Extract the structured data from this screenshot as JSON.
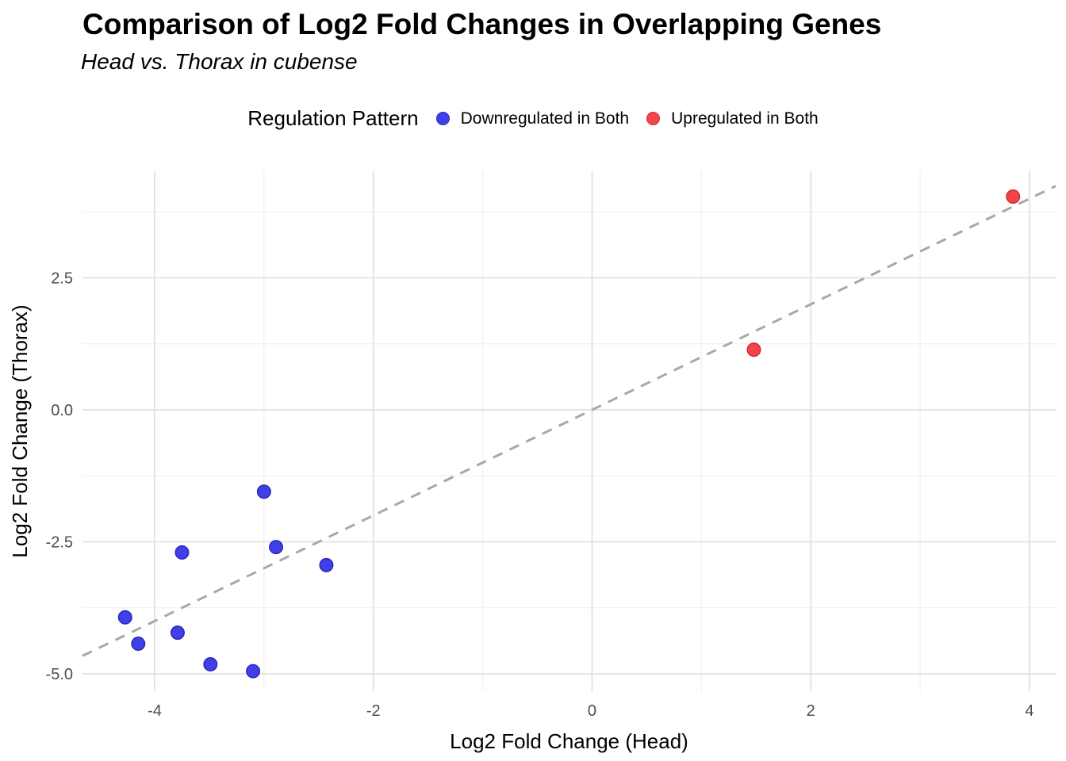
{
  "title": "Comparison of Log2 Fold Changes in Overlapping Genes",
  "subtitle": "Head vs. Thorax in cubense",
  "legend": {
    "title": "Regulation Pattern",
    "items": [
      {
        "label": "Downregulated in Both"
      },
      {
        "label": "Upregulated in Both"
      }
    ]
  },
  "chart_data": {
    "type": "scatter",
    "title": "Comparison of Log2 Fold Changes in Overlapping Genes",
    "subtitle": "Head vs. Thorax in cubense",
    "xlabel": "Log2 Fold Change (Head)",
    "ylabel": "Log2 Fold Change (Thorax)",
    "xlim": [
      -4.66,
      4.24
    ],
    "ylim": [
      -5.33,
      4.52
    ],
    "x_ticks": [
      {
        "v": -4,
        "label": "-4"
      },
      {
        "v": -2,
        "label": "-2"
      },
      {
        "v": 0,
        "label": "0"
      },
      {
        "v": 2,
        "label": "2"
      },
      {
        "v": 4,
        "label": "4"
      }
    ],
    "x_minor": [
      -3,
      -1,
      1,
      3
    ],
    "y_ticks": [
      {
        "v": 2.5,
        "label": "2.5"
      },
      {
        "v": 0,
        "label": "0.0"
      },
      {
        "v": -2.5,
        "label": "-2.5"
      },
      {
        "v": -5,
        "label": "-5.0"
      }
    ],
    "y_minor": [
      3.75,
      1.25,
      -1.25,
      -3.75
    ],
    "grid": true,
    "legend_position": "top",
    "series": [
      {
        "name": "Downregulated in Both",
        "color": "#4140E8",
        "border": "#2B2AB8",
        "points": [
          [
            -4.27,
            -3.93
          ],
          [
            -4.15,
            -4.43
          ],
          [
            -3.79,
            -4.22
          ],
          [
            -3.75,
            -2.7
          ],
          [
            -3.49,
            -4.82
          ],
          [
            -3.1,
            -4.95
          ],
          [
            -3.0,
            -1.55
          ],
          [
            -2.89,
            -2.6
          ],
          [
            -2.43,
            -2.94
          ]
        ]
      },
      {
        "name": "Upregulated in Both",
        "color": "#F4434B",
        "border": "#C92F37",
        "points": [
          [
            1.48,
            1.14
          ],
          [
            3.85,
            4.04
          ]
        ]
      }
    ],
    "reference_line": {
      "type": "identity",
      "slope": 1,
      "intercept": 0,
      "style": "dashed",
      "color": "#A8A8A8"
    },
    "colors": {
      "tick_label": "#4D4D4D",
      "grid_major": "#E4E4E4",
      "grid_minor": "#F0F0F0"
    }
  }
}
